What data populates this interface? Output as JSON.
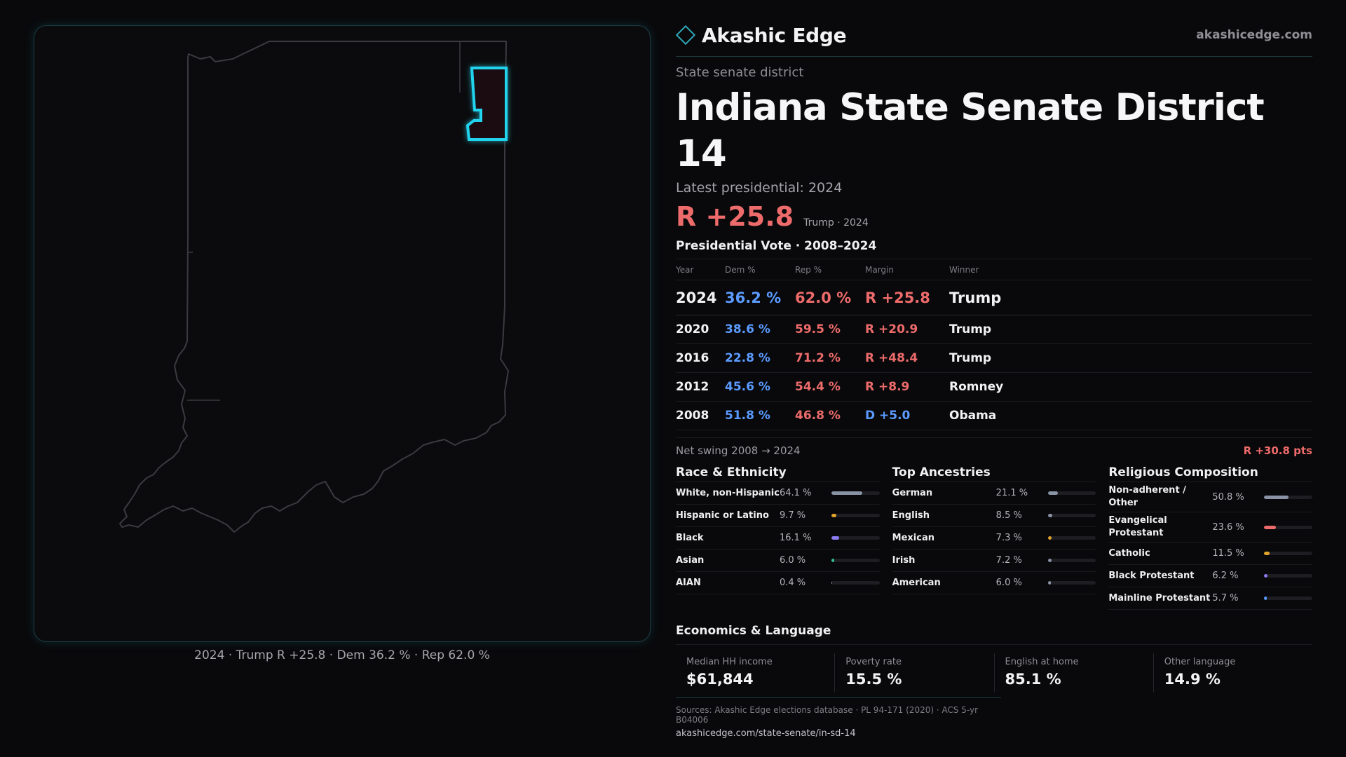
{
  "map": {
    "caption": "2024 · Trump R +25.8 · Dem 36.2 % · Rep 62.0 %",
    "district_color": "#22d3ee"
  },
  "header": {
    "brand": "Akashic Edge",
    "url": "akashicedge.com",
    "eyebrow": "State senate district",
    "title": "Indiana State Senate District 14",
    "latest": "Latest presidential: 2024",
    "big_margin": "R +25.8",
    "margin_sub": "Trump · 2024"
  },
  "pres_vote": {
    "title": "Presidential Vote · 2008–2024",
    "columns": [
      "Year",
      "Dem %",
      "Rep %",
      "Margin",
      "Winner"
    ],
    "rows": [
      {
        "year": "2024",
        "dem": "36.2 %",
        "rep": "62.0 %",
        "margin": "R +25.8",
        "party": "R",
        "winner": "Trump"
      },
      {
        "year": "2020",
        "dem": "38.6 %",
        "rep": "59.5 %",
        "margin": "R +20.9",
        "party": "R",
        "winner": "Trump"
      },
      {
        "year": "2016",
        "dem": "22.8 %",
        "rep": "71.2 %",
        "margin": "R +48.4",
        "party": "R",
        "winner": "Trump"
      },
      {
        "year": "2012",
        "dem": "45.6 %",
        "rep": "54.4 %",
        "margin": "R +8.9",
        "party": "R",
        "winner": "Romney"
      },
      {
        "year": "2008",
        "dem": "51.8 %",
        "rep": "46.8 %",
        "margin": "D +5.0",
        "party": "D",
        "winner": "Obama"
      }
    ],
    "swing_label": "Net swing 2008 → 2024",
    "swing_value": "R +30.8 pts"
  },
  "race": {
    "title": "Race & Ethnicity",
    "items": [
      {
        "label": "White, non-Hispanic",
        "pct": "64.1 %",
        "value": 64.1,
        "color": "#8a93a6"
      },
      {
        "label": "Hispanic or Latino",
        "pct": "9.7 %",
        "value": 9.7,
        "color": "#e2a32b"
      },
      {
        "label": "Black",
        "pct": "16.1 %",
        "value": 16.1,
        "color": "#8b7cf0"
      },
      {
        "label": "Asian",
        "pct": "6.0 %",
        "value": 6.0,
        "color": "#2fbf8f"
      },
      {
        "label": "AIAN",
        "pct": "0.4 %",
        "value": 0.4,
        "color": "#8a93a6"
      }
    ]
  },
  "ancestry": {
    "title": "Top Ancestries",
    "items": [
      {
        "label": "German",
        "pct": "21.1 %",
        "value": 21.1,
        "color": "#8a93a6"
      },
      {
        "label": "English",
        "pct": "8.5 %",
        "value": 8.5,
        "color": "#8a93a6"
      },
      {
        "label": "Mexican",
        "pct": "7.3 %",
        "value": 7.3,
        "color": "#e2a32b"
      },
      {
        "label": "Irish",
        "pct": "7.2 %",
        "value": 7.2,
        "color": "#8a93a6"
      },
      {
        "label": "American",
        "pct": "6.0 %",
        "value": 6.0,
        "color": "#8a93a6"
      }
    ]
  },
  "religion": {
    "title": "Religious Composition",
    "items": [
      {
        "label": "Non-adherent / Other",
        "pct": "50.8 %",
        "value": 50.8,
        "color": "#8a93a6"
      },
      {
        "label": "Evangelical Protestant",
        "pct": "23.6 %",
        "value": 23.6,
        "color": "#ee6b6b"
      },
      {
        "label": "Catholic",
        "pct": "11.5 %",
        "value": 11.5,
        "color": "#e2a32b"
      },
      {
        "label": "Black Protestant",
        "pct": "6.2 %",
        "value": 6.2,
        "color": "#8b7cf0"
      },
      {
        "label": "Mainline Protestant",
        "pct": "5.7 %",
        "value": 5.7,
        "color": "#5b9bff"
      }
    ]
  },
  "economics": {
    "title": "Economics & Language",
    "cells": [
      {
        "label": "Median HH income",
        "value": "$61,844"
      },
      {
        "label": "Poverty rate",
        "value": "15.5 %"
      },
      {
        "label": "English at home",
        "value": "85.1 %"
      },
      {
        "label": "Other language",
        "value": "14.9 %"
      }
    ]
  },
  "sources": {
    "line": "Sources: Akashic Edge elections database · PL 94-171 (2020) · ACS 5-yr B04006",
    "url": "akashicedge.com/state-senate/in-sd-14"
  }
}
